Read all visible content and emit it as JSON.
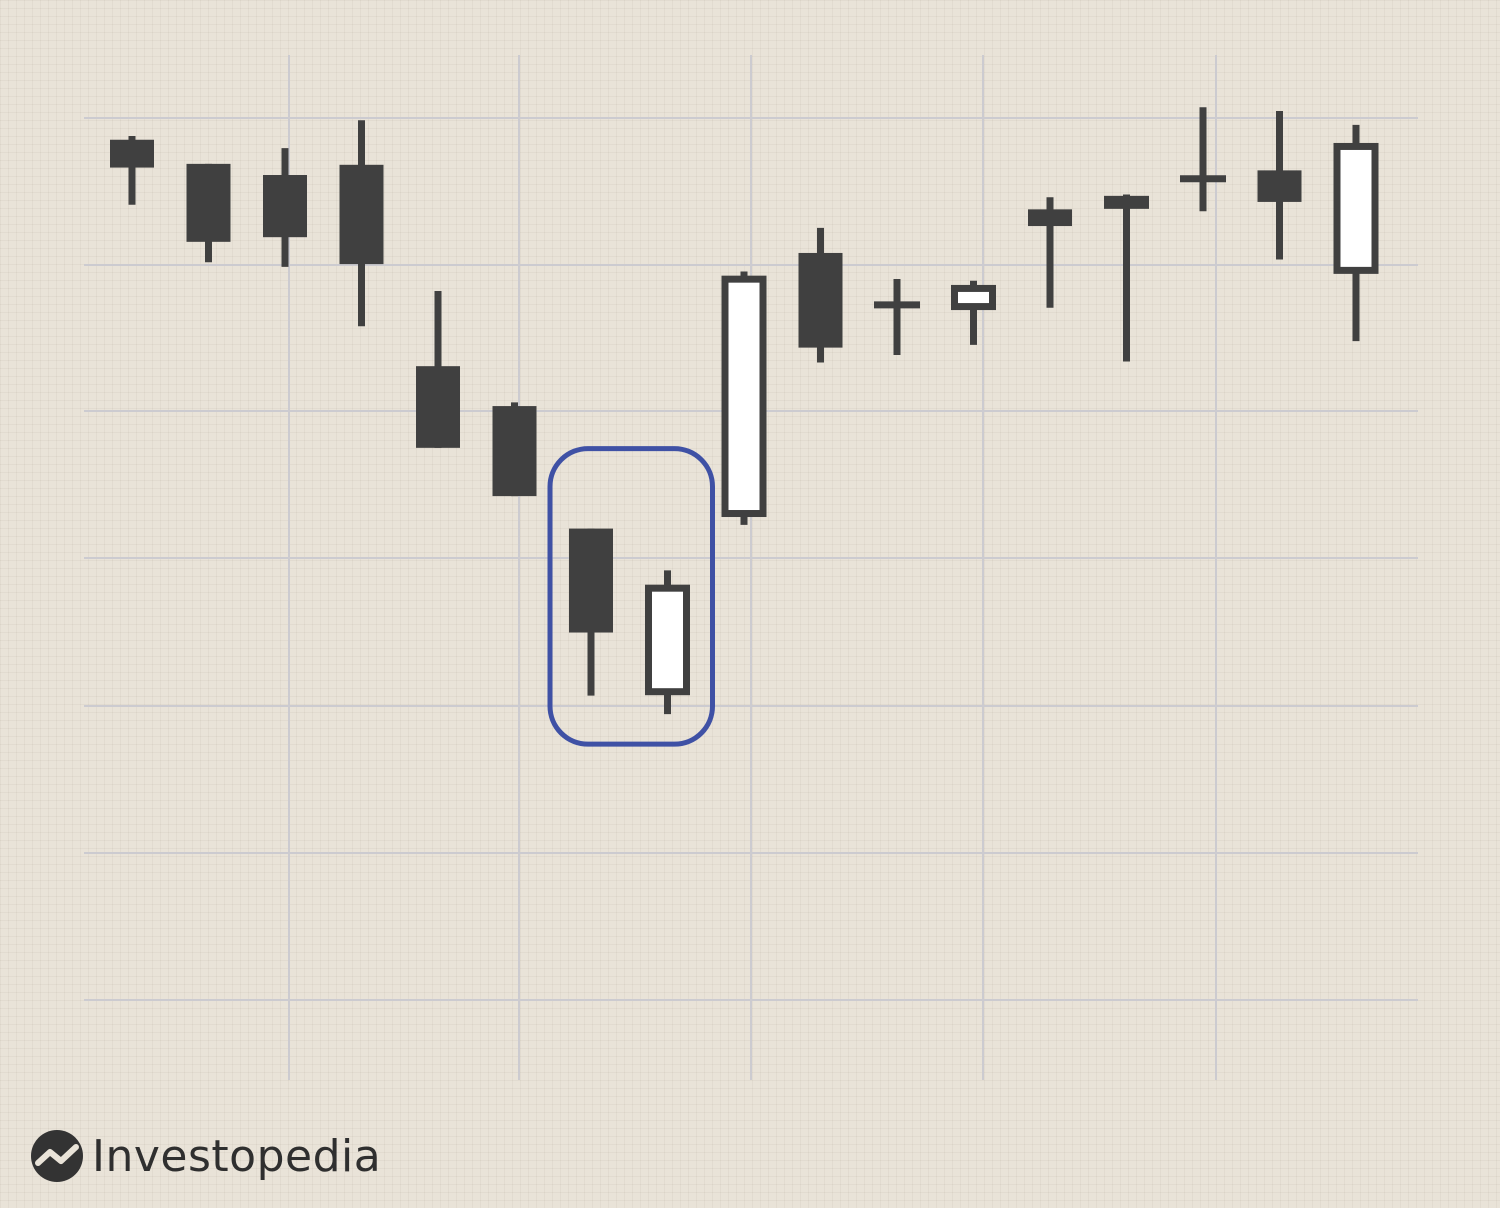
{
  "chart_data": {
    "type": "candlestick",
    "title": "",
    "xlabel": "",
    "ylabel": "",
    "ylim": [
      0,
      100
    ],
    "grid": true,
    "colors": {
      "bearish": "#404040",
      "bullish_fill": "#ffffff",
      "outline": "#404040",
      "highlight": "#3f51a5",
      "gridline": "#cccbd0"
    },
    "candles": [
      {
        "open": 92.7,
        "close": 89.7,
        "high": 93.1,
        "low": 85.7
      },
      {
        "open": 90.1,
        "close": 81.7,
        "high": 90.1,
        "low": 79.5
      },
      {
        "open": 88.9,
        "close": 82.2,
        "high": 91.8,
        "low": 79.0
      },
      {
        "open": 90.0,
        "close": 79.3,
        "high": 94.8,
        "low": 72.6
      },
      {
        "open": 68.3,
        "close": 59.5,
        "high": 76.4,
        "low": 59.5
      },
      {
        "open": 64.0,
        "close": 54.3,
        "high": 64.4,
        "low": 54.3
      },
      {
        "open": 50.8,
        "close": 39.6,
        "high": 50.8,
        "low": 32.8
      },
      {
        "open": 32.9,
        "close": 44.7,
        "high": 46.3,
        "low": 30.8
      },
      {
        "open": 52.1,
        "close": 78.0,
        "high": 78.5,
        "low": 51.2
      },
      {
        "open": 80.5,
        "close": 70.3,
        "high": 83.2,
        "low": 68.7
      },
      {
        "open": 74.9,
        "close": 74.9,
        "high": 77.7,
        "low": 69.5
      },
      {
        "open": 74.4,
        "close": 77.0,
        "high": 77.5,
        "low": 70.6
      },
      {
        "open": 85.2,
        "close": 83.4,
        "high": 86.5,
        "low": 74.6
      },
      {
        "open": 85.5,
        "close": 86.6,
        "high": 86.8,
        "low": 68.8
      },
      {
        "open": 88.5,
        "close": 88.5,
        "high": 96.2,
        "low": 85.0
      },
      {
        "open": 89.4,
        "close": 86.0,
        "high": 95.8,
        "low": 79.8
      },
      {
        "open": 78.3,
        "close": 92.3,
        "high": 94.3,
        "low": 71.0
      }
    ],
    "highlight": {
      "from": 6,
      "to": 7
    }
  },
  "brand": {
    "name": "Investopedia",
    "icon": "investopedia-logo-icon"
  }
}
